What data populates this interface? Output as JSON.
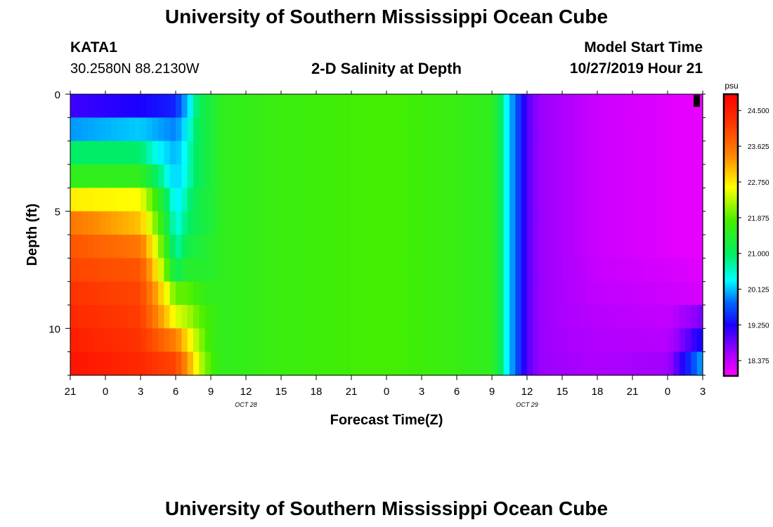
{
  "header": {
    "title": "University of Southern Mississippi Ocean Cube",
    "station": "KATA1",
    "coords": "30.2580N 88.2130W",
    "plot_title": "2-D Salinity at Depth",
    "model_label": "Model Start Time",
    "model_time": "10/27/2019 Hour 21"
  },
  "footer": {
    "title": "University of Southern Mississippi Ocean Cube"
  },
  "chart_data": {
    "type": "heatmap",
    "title": "2-D Salinity at Depth",
    "xlabel": "Forecast Time(Z)",
    "ylabel": "Depth (ft)",
    "x_tick_labels": [
      "21",
      "0",
      "3",
      "6",
      "9",
      "12",
      "15",
      "18",
      "21",
      "0",
      "3",
      "6",
      "9",
      "12",
      "15",
      "18",
      "21",
      "0",
      "3"
    ],
    "x_date_labels": [
      {
        "label": "OCT 28",
        "tick_index": 5
      },
      {
        "label": "OCT 29",
        "tick_index": 13
      }
    ],
    "x_range_hours": [
      0,
      54
    ],
    "y_ticks": [
      0,
      5,
      10
    ],
    "y_range_ft": [
      0,
      12
    ],
    "colorbar": {
      "unit": "psu",
      "ticks": [
        "24.500",
        "23.625",
        "22.750",
        "21.875",
        "21.000",
        "20.125",
        "19.250",
        "18.375"
      ],
      "range": [
        18.0,
        24.9
      ]
    },
    "depth_levels_ft": [
      0.5,
      1.5,
      2.5,
      3.5,
      4.5,
      5.5,
      6.5,
      7.5,
      8.5,
      9.5,
      10.5,
      11.5
    ],
    "time_hours": [
      0,
      6,
      9,
      10,
      11,
      12,
      13,
      18,
      27,
      36,
      37,
      38,
      39,
      40,
      42,
      45,
      51,
      54
    ],
    "salinity_psu": [
      [
        19.5,
        19.7,
        19.9,
        20.7,
        21.3,
        21.5,
        21.7,
        21.8,
        21.9,
        21.7,
        21.1,
        20.3,
        19.4,
        19.0,
        18.8,
        18.5,
        18.3,
        18.2
      ],
      [
        20.5,
        20.7,
        20.4,
        20.9,
        21.3,
        21.5,
        21.7,
        21.8,
        21.9,
        21.7,
        21.1,
        20.3,
        19.4,
        19.0,
        18.8,
        18.5,
        18.3,
        18.2
      ],
      [
        21.2,
        21.2,
        20.6,
        21.0,
        21.3,
        21.5,
        21.7,
        21.8,
        21.9,
        21.7,
        21.1,
        20.3,
        19.4,
        19.0,
        18.8,
        18.5,
        18.3,
        18.2
      ],
      [
        21.7,
        21.7,
        20.7,
        21.0,
        21.3,
        21.5,
        21.7,
        21.8,
        21.9,
        21.7,
        21.1,
        20.3,
        19.4,
        19.0,
        18.8,
        18.5,
        18.3,
        18.2
      ],
      [
        22.7,
        22.6,
        20.8,
        21.1,
        21.4,
        21.5,
        21.7,
        21.8,
        21.9,
        21.7,
        21.1,
        20.3,
        19.4,
        19.0,
        18.8,
        18.5,
        18.3,
        18.2
      ],
      [
        23.6,
        23.0,
        20.9,
        21.2,
        21.4,
        21.5,
        21.7,
        21.8,
        21.9,
        21.7,
        21.1,
        20.3,
        19.4,
        19.0,
        18.8,
        18.5,
        18.3,
        18.2
      ],
      [
        24.0,
        23.6,
        21.0,
        21.4,
        21.5,
        21.6,
        21.7,
        21.8,
        21.9,
        21.7,
        21.1,
        20.3,
        19.4,
        19.0,
        18.8,
        18.5,
        18.3,
        18.2
      ],
      [
        24.2,
        24.0,
        21.3,
        21.6,
        21.6,
        21.6,
        21.7,
        21.8,
        21.9,
        21.7,
        21.1,
        20.3,
        19.4,
        19.0,
        18.8,
        18.55,
        18.4,
        18.3
      ],
      [
        24.4,
        24.2,
        22.0,
        22.0,
        21.8,
        21.7,
        21.7,
        21.8,
        21.9,
        21.7,
        21.1,
        20.3,
        19.4,
        19.0,
        18.8,
        18.6,
        18.5,
        18.4
      ],
      [
        24.5,
        24.3,
        22.5,
        22.3,
        22.0,
        21.8,
        21.7,
        21.8,
        21.9,
        21.7,
        21.1,
        20.3,
        19.4,
        19.0,
        18.8,
        18.7,
        18.6,
        19.2
      ],
      [
        24.6,
        24.4,
        23.5,
        22.8,
        22.2,
        21.8,
        21.7,
        21.8,
        21.9,
        21.7,
        21.1,
        20.3,
        19.4,
        19.0,
        18.85,
        18.75,
        18.7,
        19.8
      ],
      [
        24.7,
        24.5,
        24.2,
        23.3,
        22.4,
        21.9,
        21.7,
        21.8,
        21.9,
        21.7,
        21.1,
        20.3,
        19.4,
        19.0,
        18.9,
        18.8,
        18.9,
        20.6
      ]
    ]
  }
}
